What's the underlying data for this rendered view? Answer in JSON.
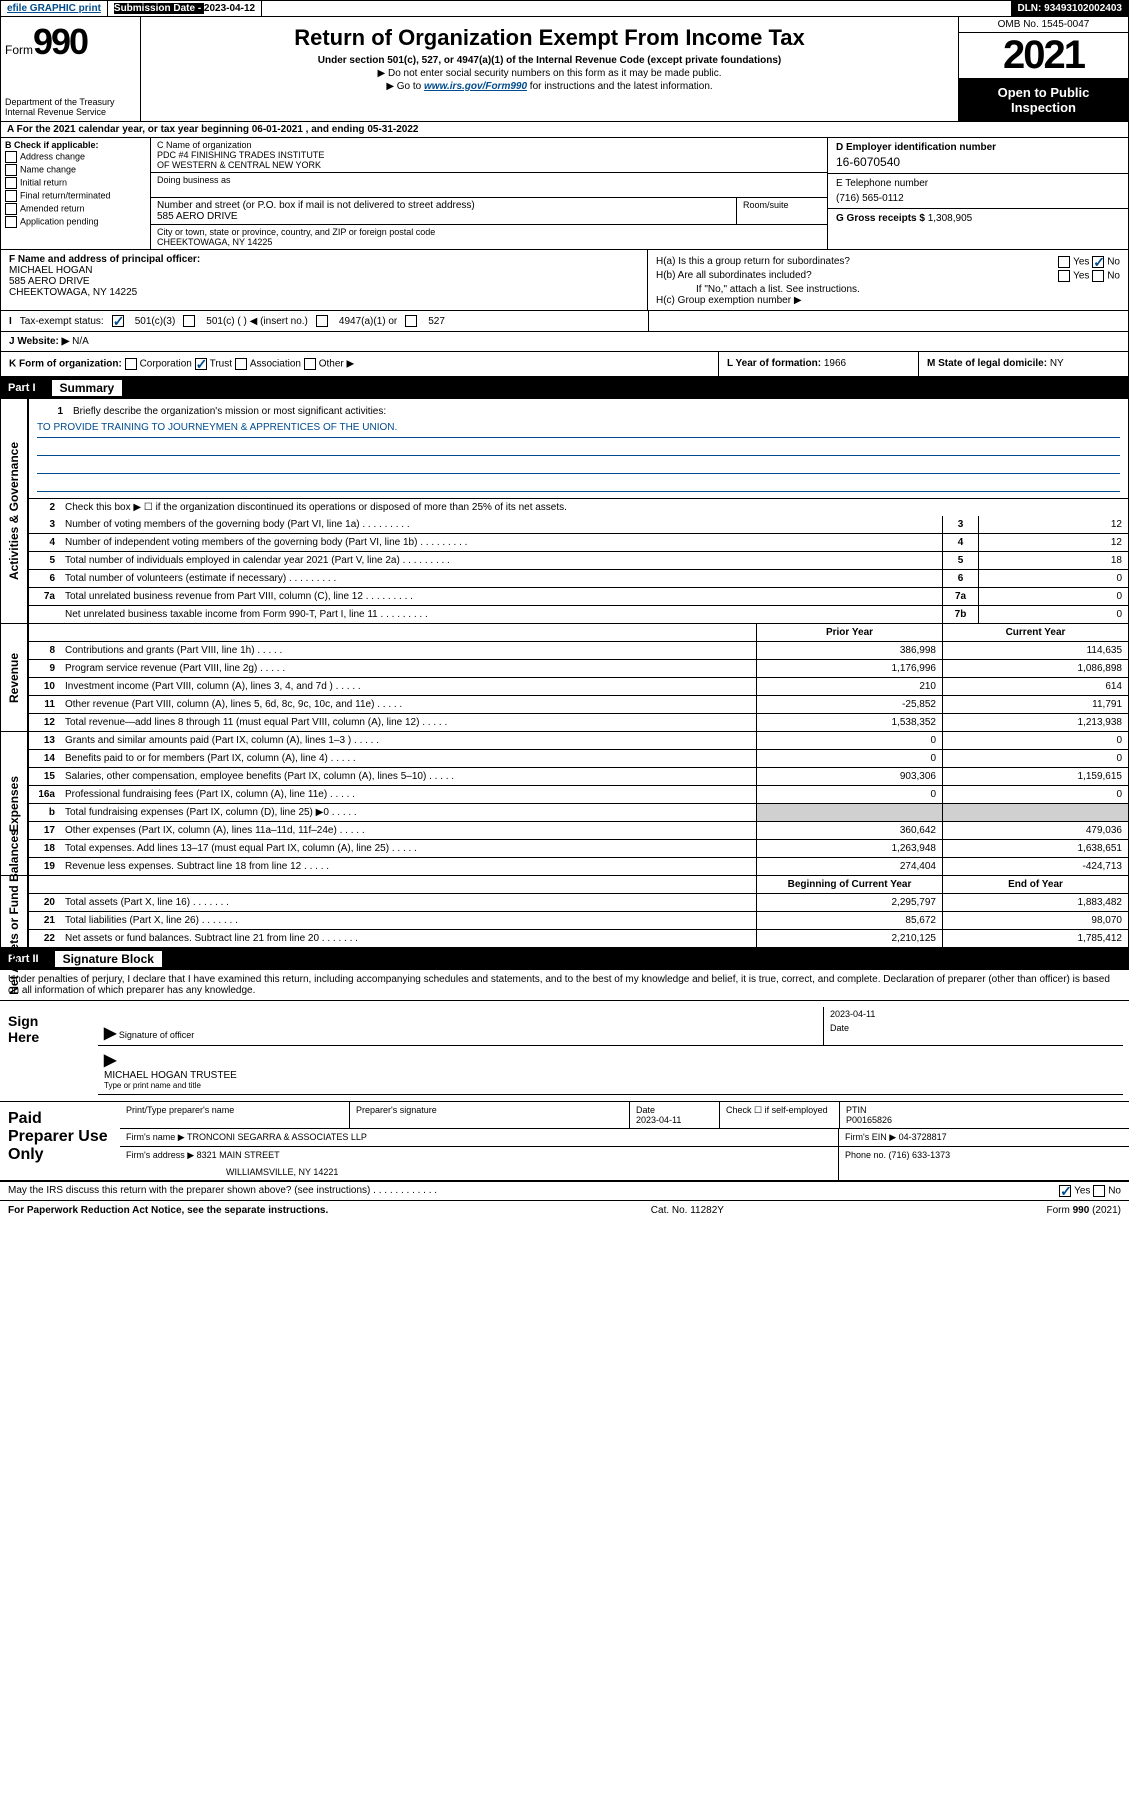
{
  "topbar": {
    "efile": "efile GRAPHIC print",
    "sub_date_label": "Submission Date - ",
    "sub_date": "2023-04-12",
    "dln": "DLN: 93493102002403"
  },
  "header": {
    "form_prefix": "Form",
    "form_num": "990",
    "dept": "Department of the Treasury\nInternal Revenue Service",
    "title": "Return of Organization Exempt From Income Tax",
    "sub1": "Under section 501(c), 527, or 4947(a)(1) of the Internal Revenue Code (except private foundations)",
    "note1": "▶ Do not enter social security numbers on this form as it may be made public.",
    "note2_pre": "▶ Go to ",
    "note2_link": "www.irs.gov/Form990",
    "note2_post": " for instructions and the latest information.",
    "omb": "OMB No. 1545-0047",
    "year": "2021",
    "open_public": "Open to Public Inspection"
  },
  "lineA": "A For the 2021 calendar year, or tax year beginning 06-01-2021   , and ending 05-31-2022",
  "colB": {
    "label": "B Check if applicable:",
    "items": [
      "Address change",
      "Name change",
      "Initial return",
      "Final return/terminated",
      "Amended return",
      "Application pending"
    ]
  },
  "colC": {
    "name_label": "C Name of organization",
    "name1": "PDC #4 FINISHING TRADES INSTITUTE",
    "name2": "OF WESTERN & CENTRAL NEW YORK",
    "dba_label": "Doing business as",
    "street_label": "Number and street (or P.O. box if mail is not delivered to street address)",
    "room_label": "Room/suite",
    "street": "585 AERO DRIVE",
    "city_label": "City or town, state or province, country, and ZIP or foreign postal code",
    "city": "CHEEKTOWAGA, NY  14225"
  },
  "colD": {
    "label": "D Employer identification number",
    "val": "16-6070540"
  },
  "colE": {
    "label": "E Telephone number",
    "val": "(716) 565-0112"
  },
  "colG": {
    "label": "G Gross receipts $ ",
    "val": "1,308,905"
  },
  "colF": {
    "label": "F  Name and address of principal officer:",
    "name": "MICHAEL HOGAN",
    "street": "585 AERO DRIVE",
    "city": "CHEEKTOWAGA, NY  14225"
  },
  "colH": {
    "a_label": "H(a)  Is this a group return for subordinates?",
    "b_label": "H(b)  Are all subordinates included?",
    "b_note": "If \"No,\" attach a list. See instructions.",
    "c_label": "H(c)  Group exemption number ▶"
  },
  "rowI": {
    "label": "Tax-exempt status:",
    "opts": [
      "501(c)(3)",
      "501(c) (  ) ◀ (insert no.)",
      "4947(a)(1) or",
      "527"
    ]
  },
  "rowJ": {
    "label": "Website: ▶ ",
    "val": "N/A"
  },
  "rowK": "K Form of organization:",
  "rowK_opts": [
    "Corporation",
    "Trust",
    "Association",
    "Other ▶"
  ],
  "rowL": {
    "label": "L Year of formation: ",
    "val": "1966"
  },
  "rowM": {
    "label": "M State of legal domicile: ",
    "val": "NY"
  },
  "partI": {
    "num": "Part I",
    "title": "Summary",
    "line1_label": "Briefly describe the organization's mission or most significant activities:",
    "mission": "TO PROVIDE TRAINING TO JOURNEYMEN & APPRENTICES OF THE UNION.",
    "line2": "Check this box ▶ ☐  if the organization discontinued its operations or disposed of more than 25% of its net assets.",
    "tab_gov": "Activities & Governance",
    "tab_rev": "Revenue",
    "tab_exp": "Expenses",
    "tab_net": "Net Assets or Fund Balances",
    "rows_small": [
      {
        "n": "3",
        "t": "Number of voting members of the governing body (Part VI, line 1a)",
        "box": "3",
        "v": "12"
      },
      {
        "n": "4",
        "t": "Number of independent voting members of the governing body (Part VI, line 1b)",
        "box": "4",
        "v": "12"
      },
      {
        "n": "5",
        "t": "Total number of individuals employed in calendar year 2021 (Part V, line 2a)",
        "box": "5",
        "v": "18"
      },
      {
        "n": "6",
        "t": "Total number of volunteers (estimate if necessary)",
        "box": "6",
        "v": "0"
      },
      {
        "n": "7a",
        "t": "Total unrelated business revenue from Part VIII, column (C), line 12",
        "box": "7a",
        "v": "0"
      },
      {
        "n": "",
        "t": "Net unrelated business taxable income from Form 990-T, Part I, line 11",
        "box": "7b",
        "v": "0"
      }
    ],
    "col_py": "Prior Year",
    "col_cy": "Current Year",
    "rows_rev": [
      {
        "n": "8",
        "t": "Contributions and grants (Part VIII, line 1h)",
        "py": "386,998",
        "cy": "114,635"
      },
      {
        "n": "9",
        "t": "Program service revenue (Part VIII, line 2g)",
        "py": "1,176,996",
        "cy": "1,086,898"
      },
      {
        "n": "10",
        "t": "Investment income (Part VIII, column (A), lines 3, 4, and 7d )",
        "py": "210",
        "cy": "614"
      },
      {
        "n": "11",
        "t": "Other revenue (Part VIII, column (A), lines 5, 6d, 8c, 9c, 10c, and 11e)",
        "py": "-25,852",
        "cy": "11,791"
      },
      {
        "n": "12",
        "t": "Total revenue—add lines 8 through 11 (must equal Part VIII, column (A), line 12)",
        "py": "1,538,352",
        "cy": "1,213,938"
      }
    ],
    "rows_exp": [
      {
        "n": "13",
        "t": "Grants and similar amounts paid (Part IX, column (A), lines 1–3 )",
        "py": "0",
        "cy": "0"
      },
      {
        "n": "14",
        "t": "Benefits paid to or for members (Part IX, column (A), line 4)",
        "py": "0",
        "cy": "0"
      },
      {
        "n": "15",
        "t": "Salaries, other compensation, employee benefits (Part IX, column (A), lines 5–10)",
        "py": "903,306",
        "cy": "1,159,615"
      },
      {
        "n": "16a",
        "t": "Professional fundraising fees (Part IX, column (A), line 11e)",
        "py": "0",
        "cy": "0"
      },
      {
        "n": "b",
        "t": "Total fundraising expenses (Part IX, column (D), line 25) ▶0",
        "py": "",
        "cy": "",
        "shaded": true
      },
      {
        "n": "17",
        "t": "Other expenses (Part IX, column (A), lines 11a–11d, 11f–24e)",
        "py": "360,642",
        "cy": "479,036"
      },
      {
        "n": "18",
        "t": "Total expenses. Add lines 13–17 (must equal Part IX, column (A), line 25)",
        "py": "1,263,948",
        "cy": "1,638,651"
      },
      {
        "n": "19",
        "t": "Revenue less expenses. Subtract line 18 from line 12",
        "py": "274,404",
        "cy": "-424,713"
      }
    ],
    "col_boy": "Beginning of Current Year",
    "col_eoy": "End of Year",
    "rows_net": [
      {
        "n": "20",
        "t": "Total assets (Part X, line 16)",
        "py": "2,295,797",
        "cy": "1,883,482"
      },
      {
        "n": "21",
        "t": "Total liabilities (Part X, line 26)",
        "py": "85,672",
        "cy": "98,070"
      },
      {
        "n": "22",
        "t": "Net assets or fund balances. Subtract line 21 from line 20",
        "py": "2,210,125",
        "cy": "1,785,412"
      }
    ]
  },
  "partII": {
    "num": "Part II",
    "title": "Signature Block",
    "intro": "Under penalties of perjury, I declare that I have examined this return, including accompanying schedules and statements, and to the best of my knowledge and belief, it is true, correct, and complete. Declaration of preparer (other than officer) is based on all information of which preparer has any knowledge.",
    "sign_here": "Sign Here",
    "sig_of_officer": "Signature of officer",
    "sig_date": "2023-04-11",
    "date_label": "Date",
    "officer_name": "MICHAEL HOGAN  TRUSTEE",
    "type_name": "Type or print name and title",
    "paid": "Paid Preparer Use Only",
    "pt_name_label": "Print/Type preparer's name",
    "prep_sig_label": "Preparer's signature",
    "prep_date_label": "Date",
    "prep_date": "2023-04-11",
    "check_if": "Check ☐ if self-employed",
    "ptin_label": "PTIN",
    "ptin": "P00165826",
    "firm_name_label": "Firm's name    ▶ ",
    "firm_name": "TRONCONI SEGARRA & ASSOCIATES LLP",
    "firm_ein_label": "Firm's EIN ▶ ",
    "firm_ein": "04-3728817",
    "firm_addr_label": "Firm's address ▶ ",
    "firm_addr1": "8321 MAIN STREET",
    "firm_addr2": "WILLIAMSVILLE, NY  14221",
    "phone_label": "Phone no. ",
    "phone": "(716) 633-1373",
    "may_irs": "May the IRS discuss this return with the preparer shown above? (see instructions)",
    "yes": "Yes",
    "no": "No"
  },
  "footer": {
    "left": "For Paperwork Reduction Act Notice, see the separate instructions.",
    "mid": "Cat. No. 11282Y",
    "right": "Form 990 (2021)"
  }
}
